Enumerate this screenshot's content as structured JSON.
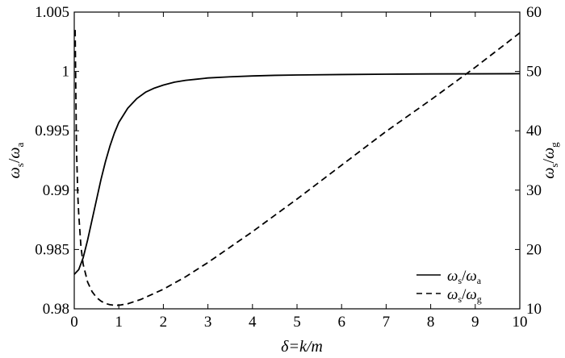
{
  "chart_data": {
    "type": "line",
    "title": "",
    "xlabel": {
      "main": "δ=k/m"
    },
    "ylabel_left": {
      "main": "ω",
      "sub": "s",
      "slash": "/",
      "main2": "ω",
      "sub2": "a"
    },
    "ylabel_right": {
      "main": "ω",
      "sub": "s",
      "slash": "/",
      "main2": "ω",
      "sub2": "g"
    },
    "xlim": [
      0,
      10
    ],
    "ylim_left": [
      0.98,
      1.005
    ],
    "ylim_right": [
      10,
      60
    ],
    "x_ticks": [
      "0",
      "1",
      "2",
      "3",
      "4",
      "5",
      "6",
      "7",
      "8",
      "9",
      "10"
    ],
    "y_left_ticks": [
      "0.98",
      "0.985",
      "0.99",
      "0.995",
      "1",
      "1.005"
    ],
    "y_right_ticks": [
      "10",
      "20",
      "30",
      "40",
      "50",
      "60"
    ],
    "grid": false,
    "legend_position": "bottom-right",
    "series": [
      {
        "name": "ωs/ωa",
        "name_parts": {
          "main": "ω",
          "sub": "s",
          "slash": "/",
          "main2": "ω",
          "sub2": "a"
        },
        "axis": "left",
        "style": "solid",
        "x": [
          0,
          0.1,
          0.2,
          0.3,
          0.4,
          0.5,
          0.6,
          0.7,
          0.8,
          0.9,
          1.0,
          1.2,
          1.4,
          1.6,
          1.8,
          2.0,
          2.25,
          2.5,
          2.75,
          3.0,
          3.5,
          4.0,
          4.5,
          5.0,
          6.0,
          7.0,
          8.0,
          9.0,
          10.0
        ],
        "y": [
          0.9829,
          0.9833,
          0.9843,
          0.9858,
          0.9875,
          0.9892,
          0.9909,
          0.9924,
          0.9937,
          0.9948,
          0.9957,
          0.9969,
          0.9977,
          0.99825,
          0.9986,
          0.99885,
          0.9991,
          0.99925,
          0.99935,
          0.99945,
          0.99955,
          0.99962,
          0.99967,
          0.9997,
          0.99974,
          0.99977,
          0.99979,
          0.9998,
          0.99981
        ]
      },
      {
        "name": "ωs/ωg",
        "name_parts": {
          "main": "ω",
          "sub": "s",
          "slash": "/",
          "main2": "ω",
          "sub2": "g"
        },
        "axis": "right",
        "style": "dashed",
        "x": [
          0.02,
          0.05,
          0.08,
          0.1,
          0.15,
          0.2,
          0.3,
          0.4,
          0.5,
          0.6,
          0.7,
          0.8,
          0.9,
          1.0,
          1.2,
          1.5,
          2.0,
          2.5,
          3.0,
          4.0,
          5.0,
          6.0,
          7.0,
          8.0,
          9.0,
          10.0
        ],
        "y": [
          57,
          37,
          29,
          26,
          20.5,
          17.5,
          14.5,
          12.9,
          11.9,
          11.3,
          10.9,
          10.7,
          10.6,
          10.6,
          10.85,
          11.6,
          13.3,
          15.4,
          17.8,
          23,
          28.5,
          34.2,
          39.9,
          45.2,
          50.7,
          56.5
        ]
      }
    ]
  }
}
